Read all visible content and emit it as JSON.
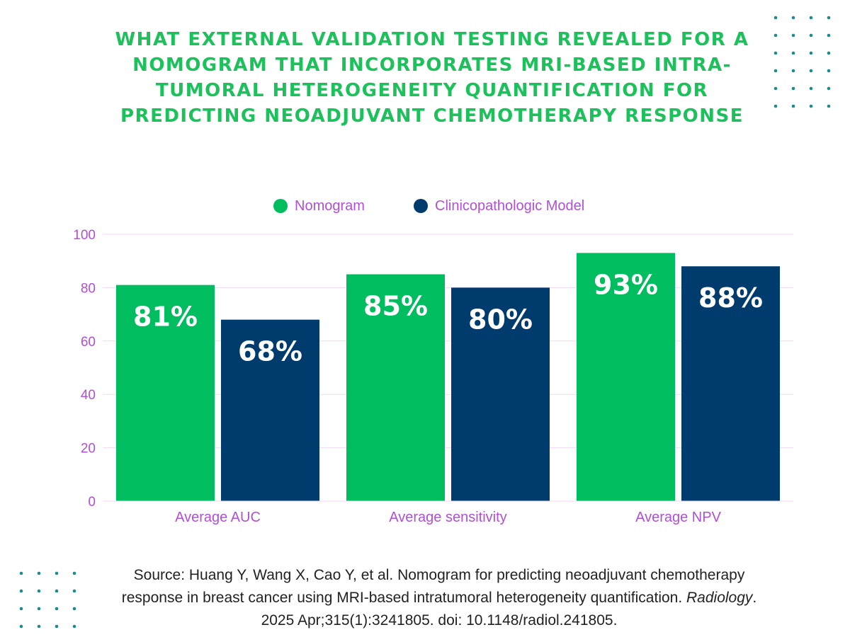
{
  "title_lines": [
    "WHAT EXTERNAL VALIDATION TESTING REVEALED FOR A",
    "NOMOGRAM THAT INCORPORATES MRI-BASED INTRA-",
    "TUMORAL HETEROGENEITY QUANTIFICATION FOR",
    "PREDICTING NEOADJUVANT CHEMOTHERAPY RESPONSE"
  ],
  "colors": {
    "title": "#1cc15c",
    "nomogram": "#00bd5f",
    "clinico": "#003b6e",
    "axis_text": "#b14fd6",
    "grid": "#f1d9f6",
    "dots": "#1a8c8c",
    "bar_label": "#ffffff"
  },
  "chart_data": {
    "type": "bar",
    "title": "WHAT EXTERNAL VALIDATION TESTING REVEALED FOR A NOMOGRAM THAT INCORPORATES MRI-BASED INTRA-TUMORAL HETEROGENEITY QUANTIFICATION FOR PREDICTING NEOADJUVANT CHEMOTHERAPY RESPONSE",
    "categories": [
      "Average AUC",
      "Average sensitivity",
      "Average NPV"
    ],
    "series": [
      {
        "name": "Nomogram",
        "values": [
          81,
          85,
          93
        ],
        "labels": [
          "81%",
          "85%",
          "93%"
        ]
      },
      {
        "name": "Clinicopathologic Model",
        "values": [
          68,
          80,
          88
        ],
        "labels": [
          "68%",
          "80%",
          "88%"
        ]
      }
    ],
    "ylim": [
      0,
      100
    ],
    "yticks": [
      0,
      20,
      40,
      60,
      80,
      100
    ],
    "xlabel": "",
    "ylabel": "",
    "grid": true,
    "legend": "top-center"
  },
  "source": {
    "line1": "Source: Huang Y, Wang X, Cao Y, et al. Nomogram for predicting neoadjuvant chemotherapy",
    "line2_pre": "response in breast cancer using MRI-based intratumoral heterogeneity quantification. ",
    "journal": "Radiology",
    "line2_post": ".",
    "line3": "2025 Apr;315(1):3241805. doi: 10.1148/radiol.241805."
  }
}
